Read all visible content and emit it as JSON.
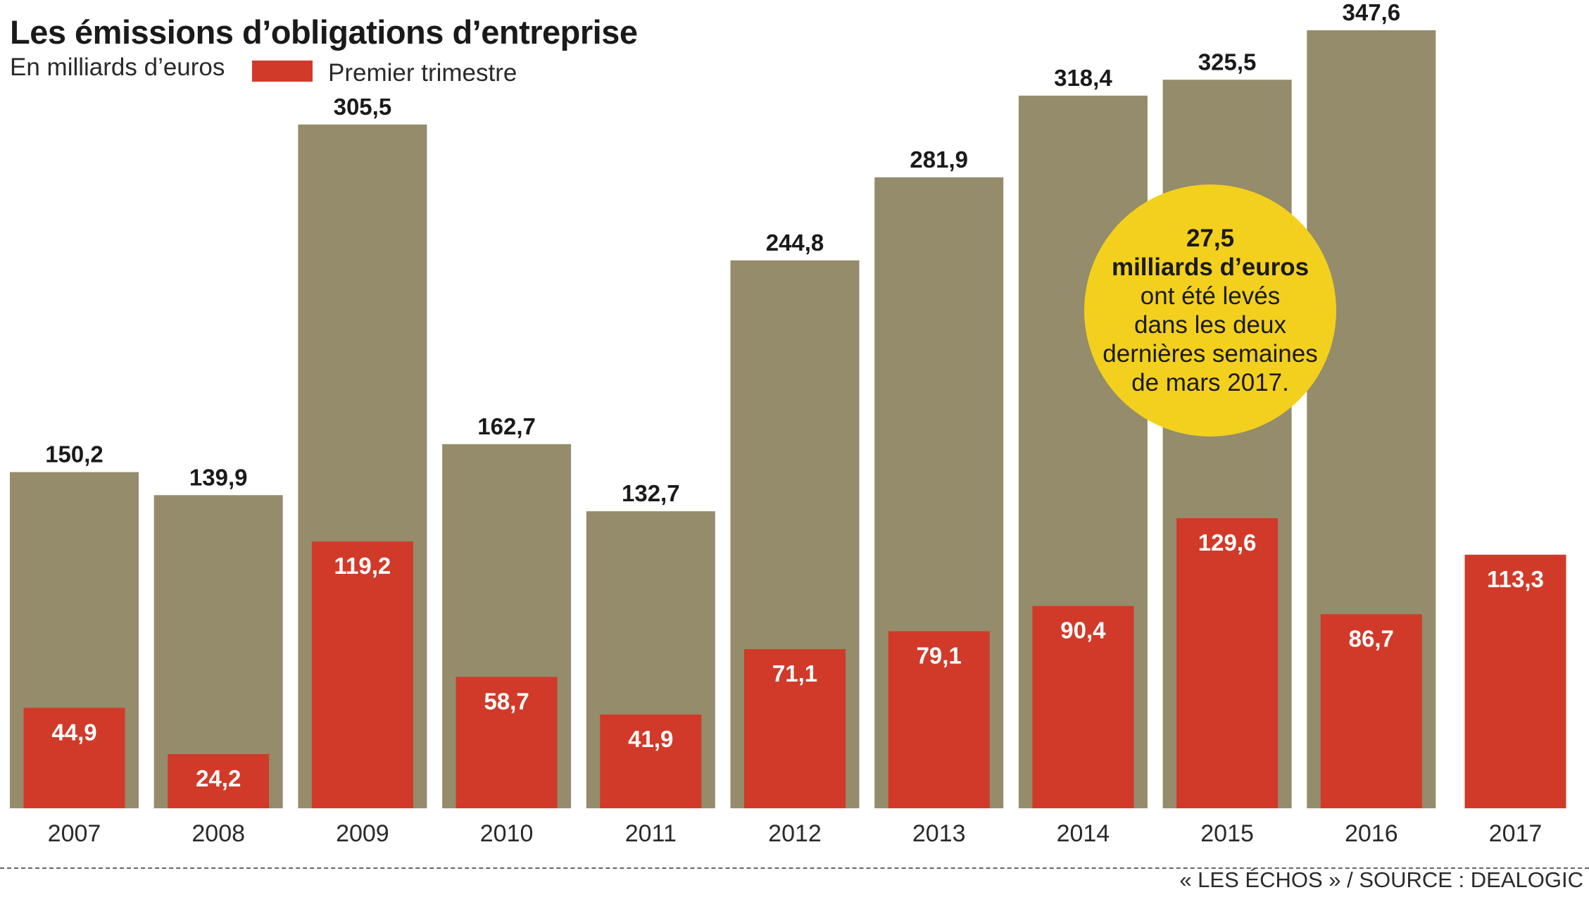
{
  "header": {
    "title": "Les émissions d’obligations d’entreprise",
    "subtitle": "En milliards d’euros",
    "legend_label": "Premier trimestre"
  },
  "callout": {
    "value": "27,5",
    "unit": "milliards d’euros",
    "line1": "ont été levés",
    "line2": "dans les deux",
    "line3": "dernières semaines",
    "line4": "de mars 2017."
  },
  "footer": {
    "source": "« LES ÉCHOS » / SOURCE : DEALOGIC"
  },
  "colors": {
    "total": "#948c6b",
    "first_quarter": "#d13a29",
    "callout": "#f2d01d"
  },
  "chart_data": {
    "type": "bar",
    "categories": [
      "2007",
      "2008",
      "2009",
      "2010",
      "2011",
      "2012",
      "2013",
      "2014",
      "2015",
      "2016",
      "2017"
    ],
    "series": [
      {
        "name": "",
        "values": [
          150.2,
          139.9,
          305.5,
          162.7,
          132.7,
          244.8,
          281.9,
          318.4,
          325.5,
          347.6,
          null
        ],
        "labels": [
          "150,2",
          "139,9",
          "305,5",
          "162,7",
          "132,7",
          "244,8",
          "281,9",
          "318,4",
          "325,5",
          "347,6",
          ""
        ]
      },
      {
        "name": "Premier trimestre",
        "values": [
          44.9,
          24.2,
          119.2,
          58.7,
          41.9,
          71.1,
          79.1,
          90.4,
          129.6,
          86.7,
          113.3
        ],
        "labels": [
          "44,9",
          "24,2",
          "119,2",
          "58,7",
          "41,9",
          "71,1",
          "79,1",
          "90,4",
          "129,6",
          "86,7",
          "113,3"
        ]
      }
    ],
    "ylim": [
      0,
      347.6
    ],
    "grid": false
  }
}
